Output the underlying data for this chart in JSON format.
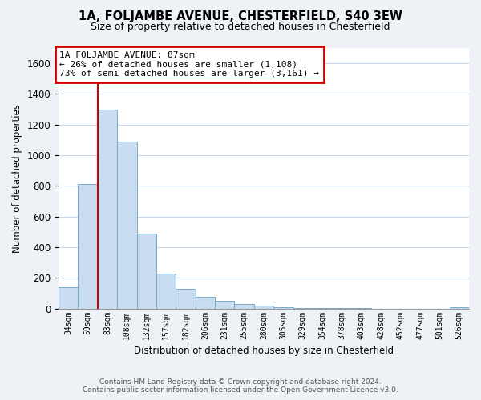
{
  "title": "1A, FOLJAMBE AVENUE, CHESTERFIELD, S40 3EW",
  "subtitle": "Size of property relative to detached houses in Chesterfield",
  "xlabel": "Distribution of detached houses by size in Chesterfield",
  "ylabel": "Number of detached properties",
  "bar_color": "#c8ddef",
  "bar_edge_color": "#7aaac8",
  "bin_labels": [
    "34sqm",
    "59sqm",
    "83sqm",
    "108sqm",
    "132sqm",
    "157sqm",
    "182sqm",
    "206sqm",
    "231sqm",
    "255sqm",
    "280sqm",
    "305sqm",
    "329sqm",
    "354sqm",
    "378sqm",
    "403sqm",
    "428sqm",
    "452sqm",
    "477sqm",
    "501sqm",
    "526sqm"
  ],
  "bar_heights": [
    140,
    810,
    1300,
    1090,
    490,
    230,
    130,
    75,
    50,
    27,
    18,
    10,
    2,
    1,
    1,
    1,
    0,
    0,
    0,
    0,
    8
  ],
  "ylim": [
    0,
    1700
  ],
  "yticks": [
    0,
    200,
    400,
    600,
    800,
    1000,
    1200,
    1400,
    1600
  ],
  "red_line_bin_idx": 2,
  "annotation_title": "1A FOLJAMBE AVENUE: 87sqm",
  "annotation_line1": "← 26% of detached houses are smaller (1,108)",
  "annotation_line2": "73% of semi-detached houses are larger (3,161) →",
  "annotation_box_color": "#ffffff",
  "annotation_box_edge": "#cc0000",
  "red_line_color": "#cc0000",
  "footer_line1": "Contains HM Land Registry data © Crown copyright and database right 2024.",
  "footer_line2": "Contains public sector information licensed under the Open Government Licence v3.0.",
  "background_color": "#eef2f7",
  "plot_bg_color": "#ffffff",
  "grid_color": "#c8d8e8"
}
